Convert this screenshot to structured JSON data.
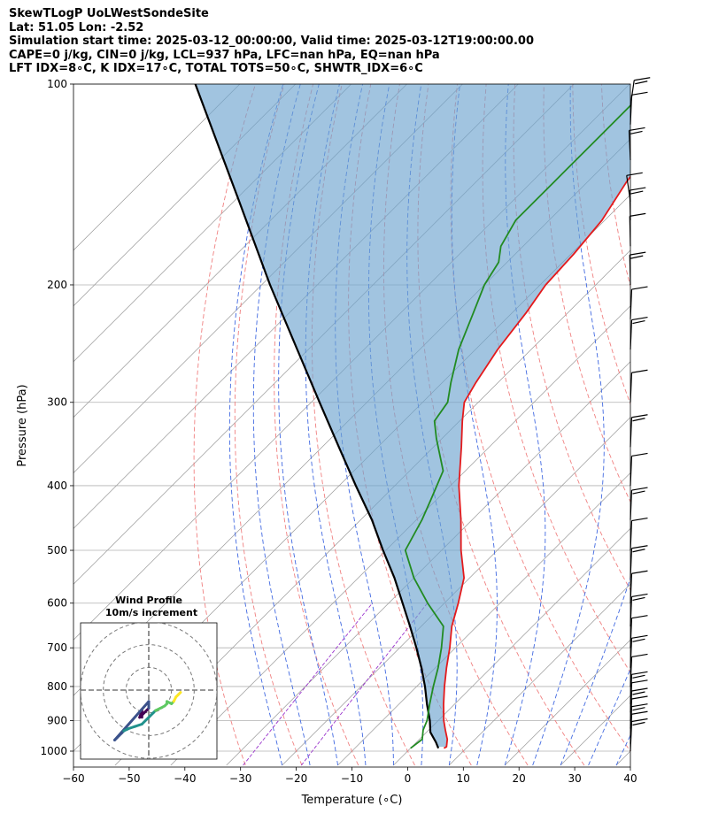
{
  "header": {
    "line1": "SkewTLogP UoLWestSondeSite",
    "line2": "Lat: 51.05   Lon: -2.52",
    "line3": "Simulation start time: 2025-03-12_00:00:00, Valid time: 2025-03-12T19:00:00.00",
    "line4": "CAPE=0 j/kg, CIN=0 j/kg, LCL=937 hPa, LFC=nan hPa, EQ=nan hPa",
    "line5": "LFT IDX=8∘C, K IDX=17∘C, TOTAL TOTS=50∘C, SHWTR_IDX=6∘C"
  },
  "chart_data": [
    {
      "type": "line",
      "subtype": "skew-t-log-p",
      "xlabel": "Temperature (∘C)",
      "ylabel": "Pressure (hPa)",
      "xlim": [
        -60,
        40
      ],
      "ylim": [
        1050,
        100
      ],
      "y_scale": "log",
      "x_ticks": [
        -60,
        -50,
        -40,
        -30,
        -20,
        -10,
        0,
        10,
        20,
        30,
        40
      ],
      "x_tick_labels": [
        "−60",
        "−50",
        "−40",
        "−30",
        "−20",
        "−10",
        "0",
        "10",
        "20",
        "30",
        "40"
      ],
      "y_ticks": [
        1000,
        900,
        800,
        700,
        600,
        500,
        400,
        300,
        200,
        100
      ],
      "grid": true,
      "colors": {
        "temperature": "#e41a1c",
        "dewpoint": "#228b22",
        "parcel": "#000000",
        "cape_fill": "#6fa5cf",
        "dry_adiabats": "#f08080",
        "moist_adiabats": "#4169e1",
        "mixing_ratio": "#9932cc",
        "isotherms": "#999999"
      },
      "series": [
        {
          "key": "temperature",
          "p": [
            990,
            985,
            960,
            930,
            900,
            850,
            800,
            750,
            700,
            650,
            600,
            550,
            500,
            450,
            400,
            350,
            320,
            300,
            280,
            250,
            220,
            200,
            180,
            160,
            140,
            120,
            100
          ],
          "t": [
            6.0,
            6.2,
            5.0,
            3.0,
            1.0,
            -2.0,
            -5.0,
            -8.0,
            -11.0,
            -14.5,
            -17.5,
            -21.0,
            -26.5,
            -32.0,
            -38.5,
            -45.0,
            -49.5,
            -52.5,
            -54.0,
            -56.0,
            -57.5,
            -59.0,
            -59.5,
            -60.5,
            -63.0,
            -65.0,
            -67.5
          ]
        },
        {
          "key": "dewpoint",
          "p": [
            990,
            960,
            930,
            900,
            850,
            800,
            750,
            700,
            650,
            600,
            550,
            500,
            450,
            420,
            380,
            340,
            320,
            300,
            280,
            250,
            220,
            200,
            185,
            175,
            160,
            140,
            120,
            100
          ],
          "t": [
            0.0,
            0.5,
            -1.0,
            -2.0,
            -4.5,
            -7.0,
            -9.5,
            -12.5,
            -16.0,
            -23.0,
            -30.0,
            -36.5,
            -39.0,
            -41.0,
            -44.0,
            -51.0,
            -54.5,
            -55.5,
            -58.5,
            -63.0,
            -67.0,
            -70.0,
            -71.5,
            -74.0,
            -76.0,
            -76.0,
            -76.0,
            -76.0
          ]
        },
        {
          "key": "parcel",
          "p": [
            990,
            970,
            937,
            900,
            850,
            800,
            750,
            700,
            650,
            600,
            550,
            500,
            450,
            400,
            350,
            300,
            250,
            200,
            150,
            100
          ],
          "t": [
            5.0,
            3.5,
            0.7,
            -1.5,
            -5.0,
            -8.5,
            -12.5,
            -17.0,
            -22.0,
            -27.5,
            -33.5,
            -40.5,
            -48.0,
            -57.0,
            -67.0,
            -78.5,
            -92.0,
            -108.5,
            -129.0,
            -158.0
          ]
        }
      ],
      "wind_barbs_p": [
        1000,
        975,
        950,
        925,
        900,
        875,
        850,
        800,
        750,
        700,
        650,
        600,
        550,
        500,
        450,
        400,
        350,
        300,
        250,
        225,
        200,
        175,
        160,
        150,
        130,
        115,
        108
      ]
    },
    {
      "type": "line",
      "subtype": "hodograph",
      "title": "Wind Profile",
      "subtitle": "10m/s increment",
      "rings": [
        10,
        20,
        30
      ],
      "xlim": [
        -30,
        30
      ],
      "ylim": [
        -30,
        30
      ],
      "colormap": "viridis",
      "u": [
        -15,
        -14,
        -13,
        -12,
        -11,
        -9,
        -6,
        -3,
        0,
        2,
        3,
        5,
        7,
        8,
        8,
        10,
        11,
        12,
        13,
        14
      ],
      "v": [
        -22,
        -21,
        -20,
        -19,
        -18,
        -17,
        -16,
        -15,
        -12,
        -10,
        -9,
        -8,
        -7,
        -6,
        -5,
        -6,
        -5,
        -3,
        -2,
        -1
      ],
      "u2": [
        -3,
        -3,
        -4,
        -2,
        0,
        0
      ],
      "v2": [
        -12,
        -9,
        -12,
        -10,
        -8,
        -5
      ]
    }
  ]
}
